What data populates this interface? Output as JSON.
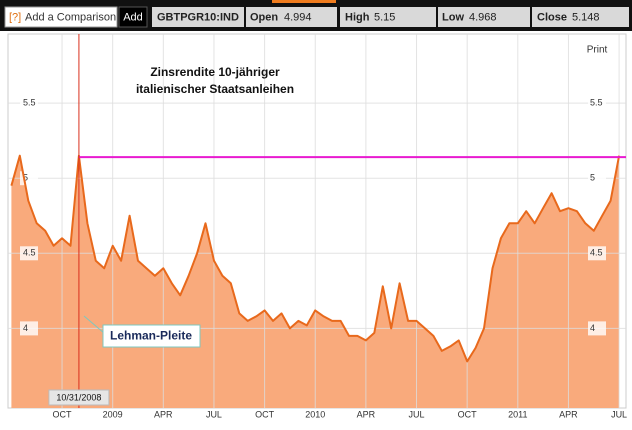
{
  "toolbar": {
    "help": "[?]",
    "input_placeholder": "Add a Comparison",
    "add_button": "Add",
    "ticker": "GBTPGR10:IND",
    "open_label": "Open",
    "open": 4.994,
    "high_label": "High",
    "high": 5.15,
    "low_label": "Low",
    "low": 4.968,
    "close_label": "Close",
    "close": 5.148
  },
  "print": "Print",
  "chart_data": {
    "type": "area",
    "title": "Zinsrendite 10-jähriger",
    "subtitle": "italienischer Staatsanleihen",
    "categories": [
      null,
      null,
      null,
      null,
      null,
      null,
      "OCT",
      null,
      null,
      null,
      null,
      null,
      "2009",
      null,
      null,
      null,
      null,
      null,
      "APR",
      null,
      null,
      null,
      null,
      null,
      "JUL",
      null,
      null,
      null,
      null,
      null,
      "OCT",
      null,
      null,
      null,
      null,
      null,
      "2010",
      null,
      null,
      null,
      null,
      null,
      "APR",
      null,
      null,
      null,
      null,
      null,
      "JUL",
      null,
      null,
      null,
      null,
      null,
      "OCT",
      null,
      null,
      null,
      null,
      null,
      "2011",
      null,
      null,
      null,
      null,
      null,
      "APR",
      null,
      null,
      null,
      null,
      null,
      "JUL"
    ],
    "values": [
      4.95,
      5.15,
      4.85,
      4.7,
      4.65,
      4.55,
      4.6,
      4.55,
      5.15,
      4.7,
      4.45,
      4.4,
      4.55,
      4.45,
      4.75,
      4.45,
      4.4,
      4.35,
      4.4,
      4.3,
      4.22,
      4.35,
      4.5,
      4.7,
      4.45,
      4.35,
      4.3,
      4.1,
      4.05,
      4.08,
      4.12,
      4.05,
      4.1,
      4.0,
      4.05,
      4.02,
      4.12,
      4.08,
      4.05,
      4.05,
      3.95,
      3.95,
      3.92,
      3.97,
      4.28,
      4.0,
      4.3,
      4.05,
      4.05,
      4.0,
      3.95,
      3.85,
      3.88,
      3.92,
      3.78,
      3.87,
      4.0,
      4.4,
      4.6,
      4.7,
      4.7,
      4.78,
      4.7,
      4.8,
      4.9,
      4.78,
      4.8,
      4.78,
      4.7,
      4.65,
      4.75,
      4.85,
      5.15
    ],
    "color": "#e8691c",
    "fill_color": "#f9aa7c",
    "ylim": [
      3.47,
      5.96
    ],
    "yticks": [
      4,
      4.5,
      5,
      5.5
    ],
    "grid": true,
    "reference_line": {
      "value": 5.14,
      "color": "#e81ad0"
    },
    "event": {
      "category_index": 8,
      "label": "10/31/2008",
      "color": "#d9301c"
    },
    "annotation": "Lehman-Pleite"
  }
}
